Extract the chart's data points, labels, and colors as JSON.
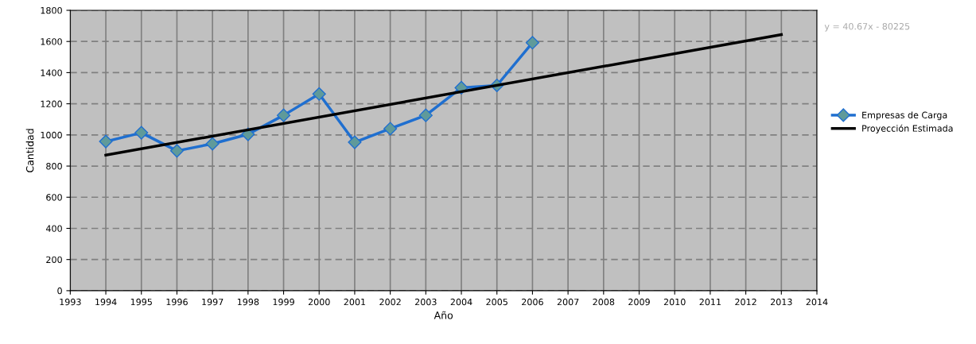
{
  "chart_data": {
    "type": "line",
    "xlabel": "Año",
    "ylabel": "Cantidad",
    "xlim": [
      1993,
      2014
    ],
    "xticks": [
      1993,
      1994,
      1995,
      1996,
      1997,
      1998,
      1999,
      2000,
      2001,
      2002,
      2003,
      2004,
      2005,
      2006,
      2007,
      2008,
      2009,
      2010,
      2011,
      2012,
      2013,
      2014
    ],
    "ylim": [
      0,
      1800
    ],
    "yticks": [
      0,
      200,
      400,
      600,
      800,
      1000,
      1200,
      1400,
      1600,
      1800
    ],
    "grid": true,
    "legend": "right",
    "series": [
      {
        "name": "Empresas de Carga",
        "color": "#1f6fd0",
        "marker": "diamond",
        "x": [
          1994,
          1995,
          1996,
          1997,
          1998,
          1999,
          2000,
          2001,
          2002,
          2003,
          2004,
          2005,
          2006
        ],
        "values": [
          958,
          1014,
          898,
          943,
          1004,
          1126,
          1263,
          953,
          1040,
          1126,
          1303,
          1318,
          1592
        ]
      },
      {
        "name": "Proyección Estimada",
        "color": "#000000",
        "x": [
          1994,
          2013
        ],
        "values": [
          870,
          1644
        ]
      }
    ],
    "annotations": [
      "y = 40.67x - 80225"
    ]
  }
}
